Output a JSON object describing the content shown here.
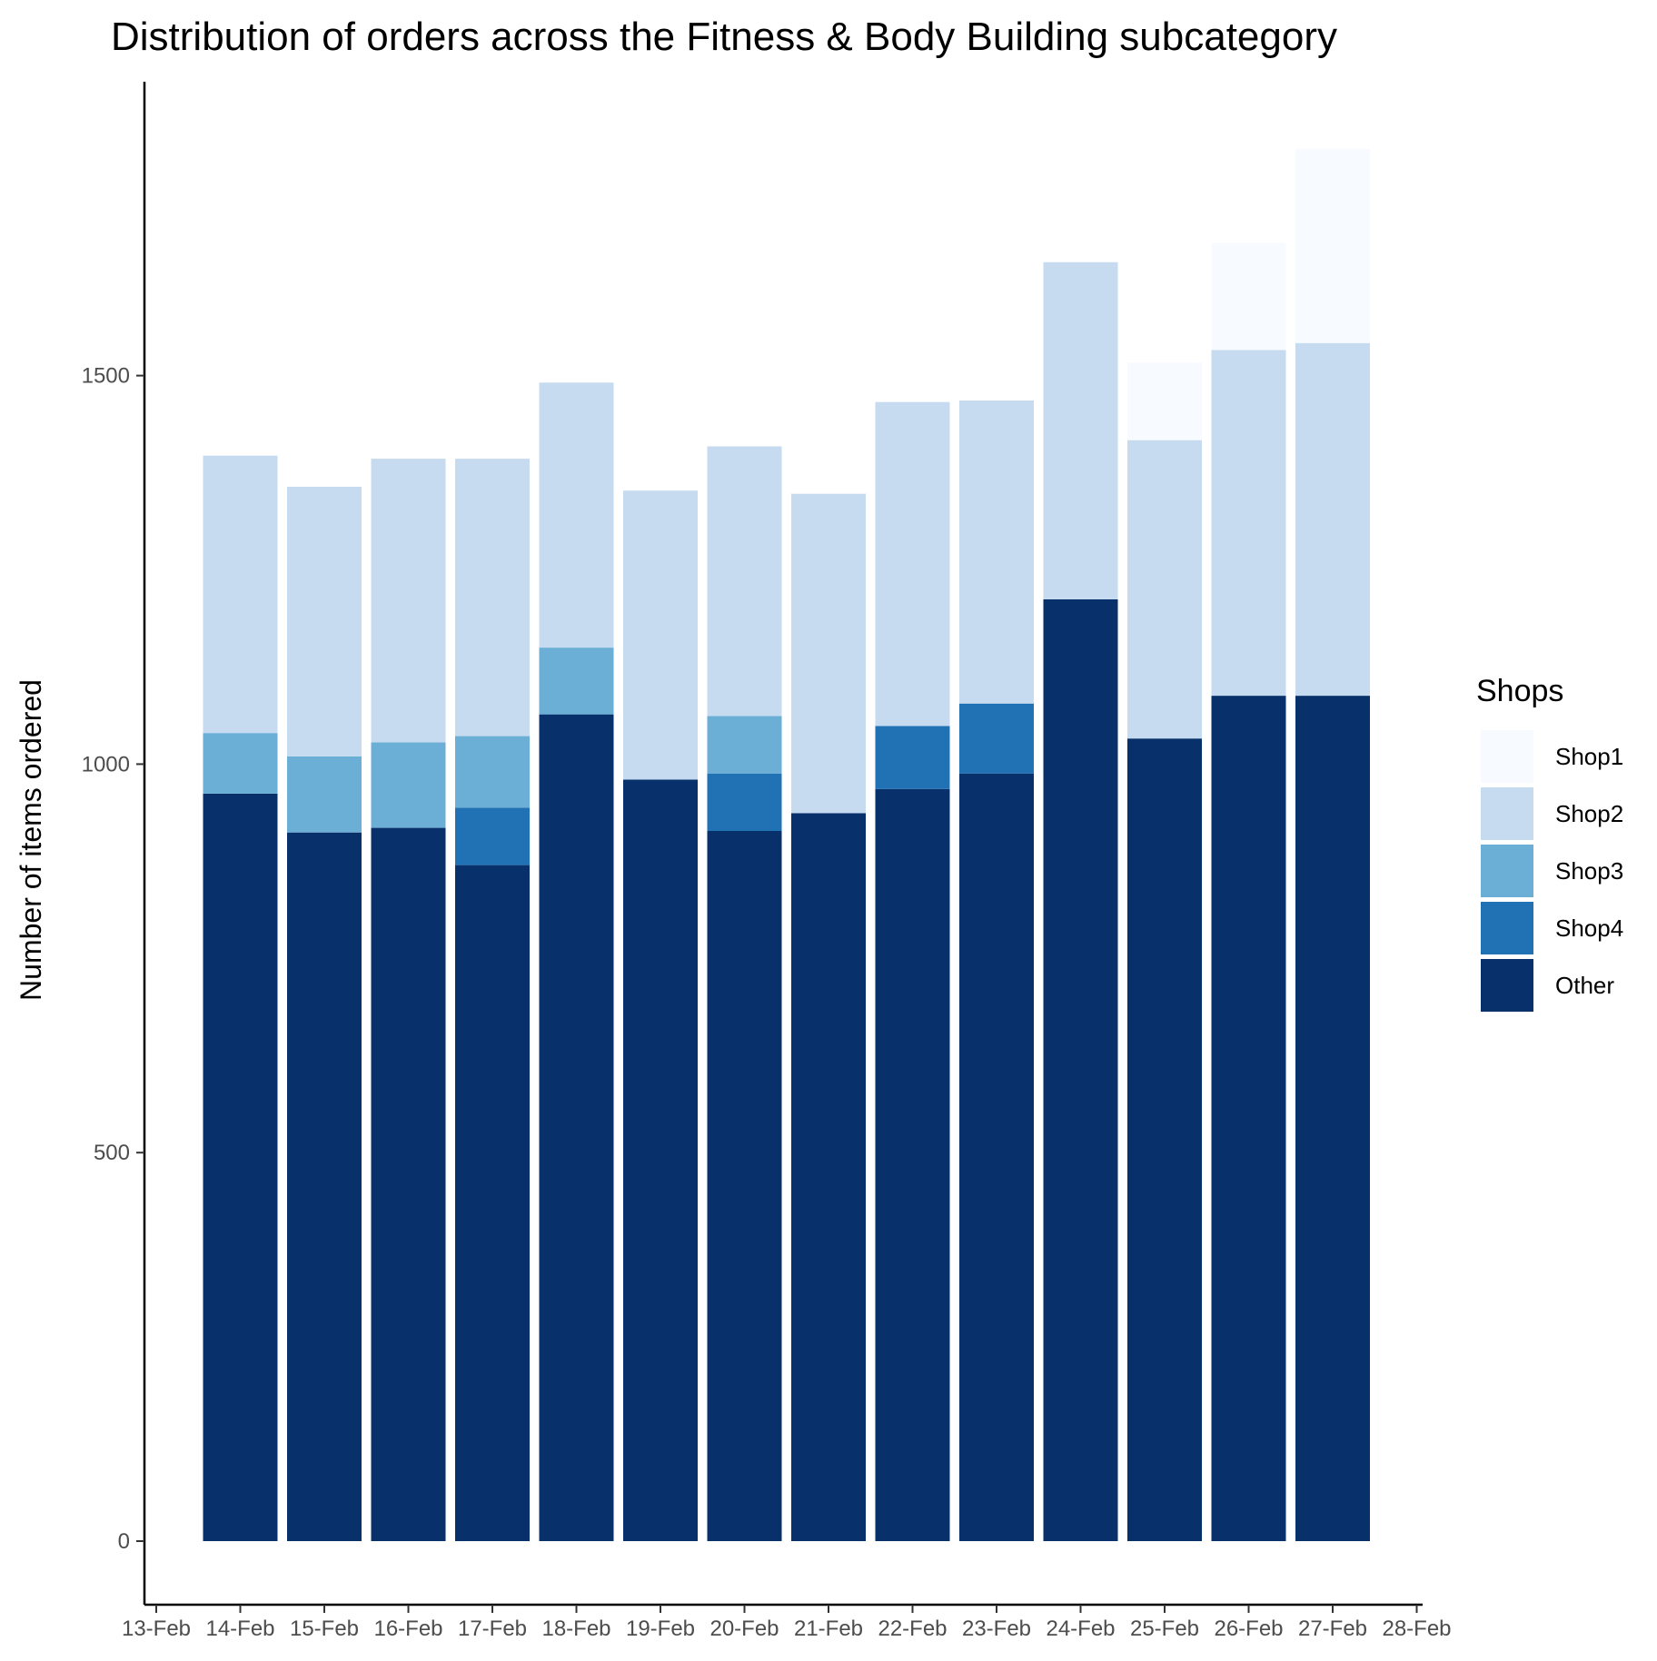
{
  "chart_data": {
    "type": "bar",
    "stacked": true,
    "title": "Distribution of orders across the Fitness & Body Building subcategory",
    "xlabel": "",
    "ylabel": "Number of items ordered",
    "ylim": [
      -85,
      1880
    ],
    "yticks": [
      0,
      500,
      1000,
      1500
    ],
    "x_axis_ticks": [
      "13-Feb",
      "14-Feb",
      "15-Feb",
      "16-Feb",
      "17-Feb",
      "18-Feb",
      "19-Feb",
      "20-Feb",
      "21-Feb",
      "22-Feb",
      "23-Feb",
      "24-Feb",
      "25-Feb",
      "26-Feb",
      "27-Feb",
      "28-Feb"
    ],
    "categories": [
      "14-Feb",
      "15-Feb",
      "16-Feb",
      "17-Feb",
      "18-Feb",
      "19-Feb",
      "20-Feb",
      "21-Feb",
      "22-Feb",
      "23-Feb",
      "24-Feb",
      "25-Feb",
      "26-Feb",
      "27-Feb"
    ],
    "legend_title": "Shops",
    "legend_position": "right",
    "series": [
      {
        "name": "Other",
        "color": "#08306b",
        "values": [
          962,
          912,
          918,
          870,
          1064,
          980,
          914,
          937,
          968,
          988,
          1212,
          1033,
          1088,
          1088
        ]
      },
      {
        "name": "Shop4",
        "color": "#2171b5",
        "values": [
          0,
          0,
          0,
          74,
          0,
          0,
          74,
          0,
          81,
          90,
          0,
          0,
          0,
          0
        ]
      },
      {
        "name": "Shop3",
        "color": "#6baed6",
        "values": [
          78,
          98,
          110,
          92,
          86,
          0,
          74,
          0,
          0,
          0,
          0,
          0,
          0,
          0
        ]
      },
      {
        "name": "Shop2",
        "color": "#c6dbef",
        "values": [
          357,
          347,
          365,
          357,
          341,
          372,
          347,
          411,
          417,
          390,
          434,
          384,
          445,
          454
        ]
      },
      {
        "name": "Shop1",
        "color": "#f7fbff",
        "values": [
          0,
          0,
          0,
          0,
          0,
          0,
          0,
          0,
          0,
          0,
          0,
          100,
          138,
          250
        ]
      }
    ],
    "legend_order": [
      "Shop1",
      "Shop2",
      "Shop3",
      "Shop4",
      "Other"
    ]
  }
}
